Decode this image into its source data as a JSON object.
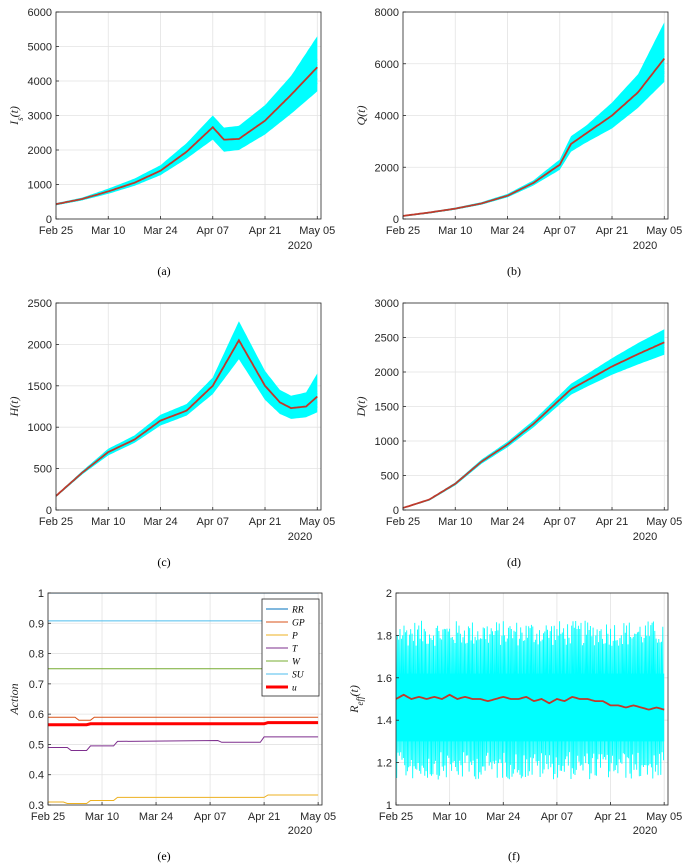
{
  "figure": {
    "year_label": "2020"
  },
  "chart_data": [
    {
      "id": "a",
      "type": "line",
      "caption": "(a)",
      "ylabel_base": "I",
      "ylabel_sub": "s",
      "ylabel_post": "(t)",
      "x_ticks": [
        "Feb 25",
        "Mar 10",
        "Mar 24",
        "Apr 07",
        "Apr 21",
        "May 05"
      ],
      "x_days": [
        0,
        14,
        28,
        42,
        56,
        70
      ],
      "x_range": [
        0,
        71
      ],
      "ylim": [
        0,
        6000
      ],
      "y_ticks": [
        0,
        1000,
        2000,
        3000,
        4000,
        5000,
        6000
      ],
      "grid": true,
      "ensemble_color": "#00ffff",
      "mean_color": "#c0392b",
      "series": [
        {
          "name": "mean",
          "x": [
            0,
            7,
            14,
            21,
            28,
            35,
            42,
            45,
            49,
            56,
            63,
            70
          ],
          "values": [
            430,
            580,
            800,
            1050,
            1400,
            1950,
            2660,
            2300,
            2320,
            2850,
            3600,
            4400
          ]
        }
      ],
      "band": {
        "x": [
          0,
          7,
          14,
          21,
          28,
          35,
          42,
          45,
          49,
          56,
          63,
          70
        ],
        "lower": [
          400,
          540,
          730,
          960,
          1270,
          1750,
          2300,
          1950,
          2000,
          2450,
          3050,
          3700
        ],
        "upper": [
          460,
          620,
          880,
          1170,
          1560,
          2200,
          3000,
          2650,
          2700,
          3300,
          4150,
          5300
        ]
      }
    },
    {
      "id": "b",
      "type": "line",
      "caption": "(b)",
      "ylabel_base": "Q",
      "ylabel_sub": "",
      "ylabel_post": "(t)",
      "x_ticks": [
        "Feb 25",
        "Mar 10",
        "Mar 24",
        "Apr 07",
        "Apr 21",
        "May 05"
      ],
      "x_days": [
        0,
        14,
        28,
        42,
        56,
        70
      ],
      "x_range": [
        0,
        71
      ],
      "ylim": [
        0,
        8000
      ],
      "y_ticks": [
        0,
        2000,
        4000,
        6000,
        8000
      ],
      "grid": true,
      "ensemble_color": "#00ffff",
      "mean_color": "#c0392b",
      "series": [
        {
          "name": "mean",
          "x": [
            0,
            7,
            14,
            21,
            28,
            35,
            42,
            45,
            49,
            56,
            63,
            70
          ],
          "values": [
            120,
            250,
            400,
            600,
            900,
            1400,
            2100,
            2900,
            3300,
            4000,
            4900,
            6200
          ]
        }
      ],
      "band": {
        "x": [
          0,
          7,
          14,
          21,
          28,
          35,
          42,
          45,
          49,
          56,
          63,
          70
        ],
        "lower": [
          100,
          220,
          370,
          560,
          840,
          1300,
          1900,
          2600,
          2950,
          3500,
          4300,
          5300
        ],
        "upper": [
          140,
          280,
          440,
          650,
          970,
          1500,
          2300,
          3200,
          3600,
          4500,
          5600,
          7600
        ]
      }
    },
    {
      "id": "c",
      "type": "line",
      "caption": "(c)",
      "ylabel_base": "H",
      "ylabel_sub": "",
      "ylabel_post": "(t)",
      "x_ticks": [
        "Feb 25",
        "Mar 10",
        "Mar 24",
        "Apr 07",
        "Apr 21",
        "May 05"
      ],
      "x_days": [
        0,
        14,
        28,
        42,
        56,
        70
      ],
      "x_range": [
        0,
        71
      ],
      "ylim": [
        0,
        2500
      ],
      "y_ticks": [
        0,
        500,
        1000,
        1500,
        2000,
        2500
      ],
      "grid": true,
      "ensemble_color": "#00ffff",
      "mean_color": "#c0392b",
      "series": [
        {
          "name": "mean",
          "x": [
            0,
            7,
            14,
            21,
            28,
            35,
            42,
            49,
            56,
            60,
            63,
            67,
            70
          ],
          "values": [
            170,
            450,
            700,
            850,
            1080,
            1200,
            1500,
            2050,
            1500,
            1300,
            1230,
            1250,
            1370
          ]
        }
      ],
      "band": {
        "x": [
          0,
          7,
          14,
          21,
          28,
          35,
          42,
          49,
          56,
          60,
          63,
          67,
          70
        ],
        "lower": [
          160,
          430,
          660,
          810,
          1020,
          1140,
          1400,
          1820,
          1330,
          1160,
          1100,
          1120,
          1180
        ],
        "upper": [
          180,
          470,
          740,
          900,
          1150,
          1280,
          1600,
          2280,
          1680,
          1450,
          1380,
          1420,
          1650
        ]
      }
    },
    {
      "id": "d",
      "type": "line",
      "caption": "(d)",
      "ylabel_base": "D",
      "ylabel_sub": "",
      "ylabel_post": "(t)",
      "x_ticks": [
        "Feb 25",
        "Mar 10",
        "Mar 24",
        "Apr 07",
        "Apr 21",
        "May 05"
      ],
      "x_days": [
        0,
        14,
        28,
        42,
        56,
        70
      ],
      "x_range": [
        0,
        71
      ],
      "ylim": [
        0,
        3000
      ],
      "y_ticks": [
        0,
        500,
        1000,
        1500,
        2000,
        2500,
        3000
      ],
      "grid": true,
      "ensemble_color": "#00ffff",
      "mean_color": "#c0392b",
      "series": [
        {
          "name": "mean",
          "x": [
            0,
            7,
            14,
            21,
            28,
            35,
            42,
            45,
            49,
            56,
            63,
            70
          ],
          "values": [
            30,
            150,
            380,
            700,
            950,
            1250,
            1600,
            1750,
            1870,
            2080,
            2260,
            2430
          ]
        }
      ],
      "band": {
        "x": [
          0,
          7,
          14,
          21,
          28,
          35,
          42,
          45,
          49,
          56,
          63,
          70
        ],
        "lower": [
          25,
          140,
          360,
          670,
          910,
          1200,
          1530,
          1670,
          1780,
          1960,
          2110,
          2250
        ],
        "upper": [
          35,
          160,
          400,
          730,
          990,
          1300,
          1670,
          1830,
          1960,
          2200,
          2420,
          2620
        ]
      }
    },
    {
      "id": "e",
      "type": "line",
      "caption": "(e)",
      "ylabel_base": "Action",
      "ylabel_sub": "",
      "ylabel_post": "",
      "x_ticks": [
        "Feb 25",
        "Mar 10",
        "Mar 24",
        "Apr 07",
        "Apr 21",
        "May 05"
      ],
      "x_days": [
        0,
        14,
        28,
        42,
        56,
        70
      ],
      "x_range": [
        0,
        71
      ],
      "ylim": [
        0.3,
        1.0
      ],
      "y_ticks": [
        0.3,
        0.4,
        0.5,
        0.6,
        0.7,
        0.8,
        0.9,
        1.0
      ],
      "y_tick_labels": [
        "0.3",
        "0.4",
        "0.5",
        "0.6",
        "0.7",
        "0.8",
        "0.9",
        "1"
      ],
      "grid": true,
      "legend_position": "top-right",
      "legend": [
        "RR",
        "GP",
        "P",
        "T",
        "W",
        "SU",
        "u"
      ],
      "series": [
        {
          "name": "RR",
          "color": "#0072bd",
          "width": 1,
          "x": [
            0,
            70
          ],
          "values": [
            1.0,
            1.0
          ]
        },
        {
          "name": "GP",
          "color": "#d95319",
          "width": 1,
          "x": [
            0,
            7,
            8,
            11,
            12,
            70
          ],
          "values": [
            0.59,
            0.59,
            0.58,
            0.58,
            0.59,
            0.59
          ]
        },
        {
          "name": "P",
          "color": "#edb120",
          "width": 1,
          "x": [
            0,
            4,
            5,
            10,
            11,
            17,
            18,
            56,
            57,
            70
          ],
          "values": [
            0.31,
            0.31,
            0.305,
            0.305,
            0.315,
            0.315,
            0.325,
            0.325,
            0.333,
            0.333
          ]
        },
        {
          "name": "T",
          "color": "#7e2f8e",
          "width": 1,
          "x": [
            0,
            5,
            6,
            10,
            11,
            17,
            18,
            44,
            45,
            55,
            56,
            70
          ],
          "values": [
            0.49,
            0.49,
            0.48,
            0.48,
            0.495,
            0.495,
            0.51,
            0.513,
            0.507,
            0.507,
            0.525,
            0.525
          ]
        },
        {
          "name": "W",
          "color": "#77ac30",
          "width": 1,
          "x": [
            0,
            70
          ],
          "values": [
            0.75,
            0.75
          ]
        },
        {
          "name": "SU",
          "color": "#4dbeee",
          "width": 1,
          "x": [
            0,
            70
          ],
          "values": [
            0.908,
            0.908
          ]
        },
        {
          "name": "u",
          "color": "#ff0000",
          "width": 3,
          "x": [
            0,
            10,
            11,
            56,
            57,
            70
          ],
          "values": [
            0.565,
            0.565,
            0.568,
            0.568,
            0.572,
            0.572
          ]
        }
      ]
    },
    {
      "id": "f",
      "type": "line",
      "caption": "(f)",
      "ylabel_base": "R",
      "ylabel_sub": "eff",
      "ylabel_post": "(t)",
      "x_ticks": [
        "Feb 25",
        "Mar 10",
        "Mar 24",
        "Apr 07",
        "Apr 21",
        "May 05"
      ],
      "x_days": [
        0,
        14,
        28,
        42,
        56,
        70
      ],
      "x_range": [
        0,
        71
      ],
      "ylim": [
        1.0,
        2.0
      ],
      "y_ticks": [
        1.0,
        1.2,
        1.4,
        1.6,
        1.8,
        2.0
      ],
      "y_tick_labels": [
        "1",
        "1.2",
        "1.4",
        "1.6",
        "1.8",
        "2"
      ],
      "grid": true,
      "ensemble_color": "#00ffff",
      "mean_color": "#c0392b",
      "series": [
        {
          "name": "mean",
          "x": [
            0,
            2,
            4,
            6,
            8,
            10,
            12,
            14,
            16,
            18,
            20,
            22,
            24,
            26,
            28,
            30,
            32,
            34,
            36,
            38,
            40,
            42,
            44,
            46,
            48,
            50,
            52,
            54,
            56,
            58,
            60,
            62,
            64,
            66,
            68,
            70
          ],
          "values": [
            1.5,
            1.52,
            1.5,
            1.51,
            1.5,
            1.51,
            1.5,
            1.52,
            1.5,
            1.51,
            1.5,
            1.5,
            1.49,
            1.5,
            1.51,
            1.5,
            1.5,
            1.51,
            1.49,
            1.5,
            1.48,
            1.5,
            1.49,
            1.51,
            1.5,
            1.5,
            1.49,
            1.49,
            1.47,
            1.47,
            1.46,
            1.47,
            1.46,
            1.45,
            1.46,
            1.45
          ]
        }
      ],
      "noise_band": {
        "x": [
          0,
          70
        ],
        "lower": [
          1.2,
          1.2
        ],
        "upper": [
          1.8,
          1.8
        ],
        "min_extent": 1.12,
        "max_extent": 1.87
      }
    }
  ]
}
